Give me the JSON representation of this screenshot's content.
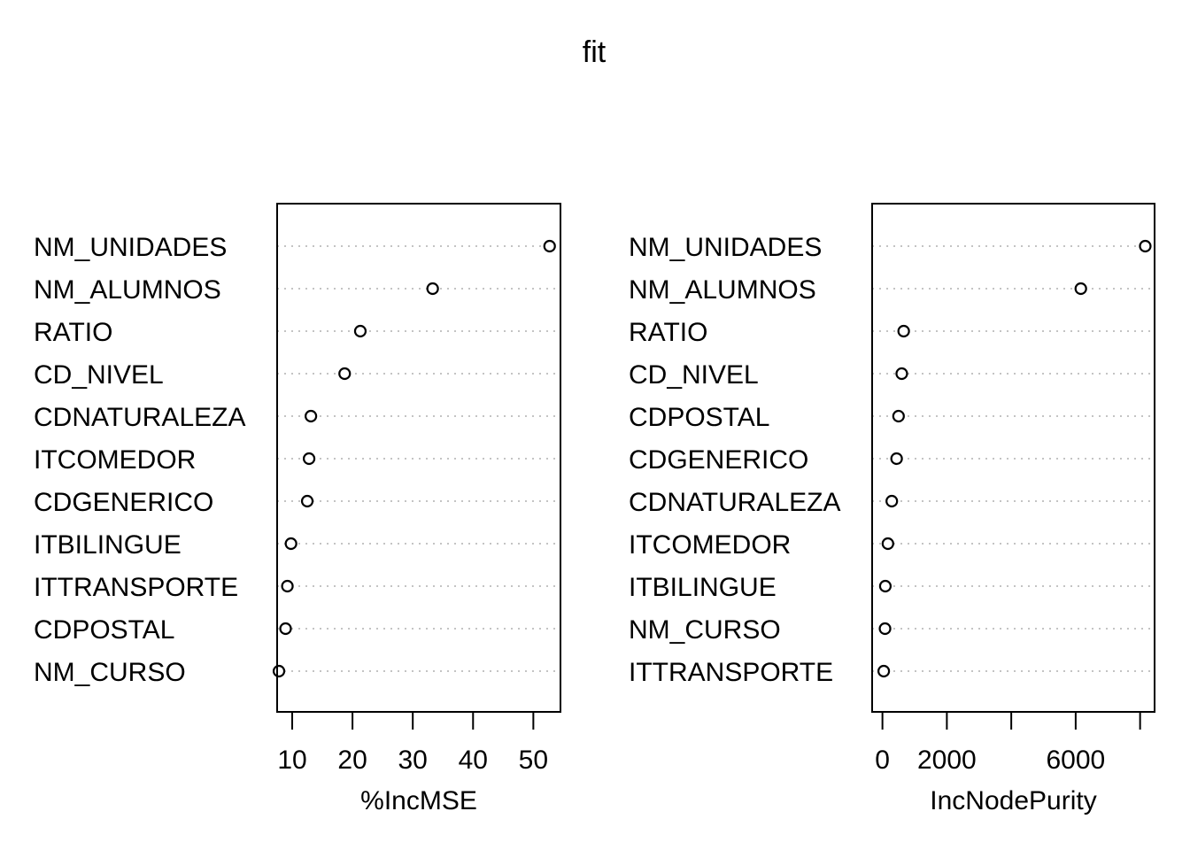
{
  "chart_data": {
    "title": "fit",
    "panels": [
      {
        "type": "scatter",
        "xlabel": "%IncMSE",
        "ylabel": "",
        "xlim": [
          7.5,
          54.5
        ],
        "xticks": [
          10,
          20,
          30,
          40,
          50
        ],
        "tick_labels": [
          "10",
          "20",
          "30",
          "40",
          "50"
        ],
        "grid": "dotted horizontal guides",
        "categories": [
          "NM_UNIDADES",
          "NM_ALUMNOS",
          "RATIO",
          "CD_NIVEL",
          "CDNATURALEZA",
          "ITCOMEDOR",
          "CDGENERICO",
          "ITBILINGUE",
          "ITTRANSPORTE",
          "CDPOSTAL",
          "NM_CURSO"
        ],
        "values": [
          52.7,
          33.3,
          21.3,
          18.7,
          13.1,
          12.8,
          12.5,
          9.8,
          9.2,
          8.9,
          7.8
        ]
      },
      {
        "type": "scatter",
        "xlabel": "IncNodePurity",
        "ylabel": "",
        "xlim": [
          -320,
          8450
        ],
        "xticks": [
          0,
          2000,
          4000,
          6000,
          8000
        ],
        "tick_labels": [
          "0",
          "2000",
          "",
          "6000",
          ""
        ],
        "grid": "dotted horizontal guides",
        "categories": [
          "NM_UNIDADES",
          "NM_ALUMNOS",
          "RATIO",
          "CD_NIVEL",
          "CDPOSTAL",
          "CDGENERICO",
          "CDNATURALEZA",
          "ITCOMEDOR",
          "ITBILINGUE",
          "NM_CURSO",
          "ITTRANSPORTE"
        ],
        "values": [
          8160,
          6160,
          660,
          600,
          500,
          440,
          290,
          170,
          90,
          80,
          40
        ]
      }
    ]
  }
}
